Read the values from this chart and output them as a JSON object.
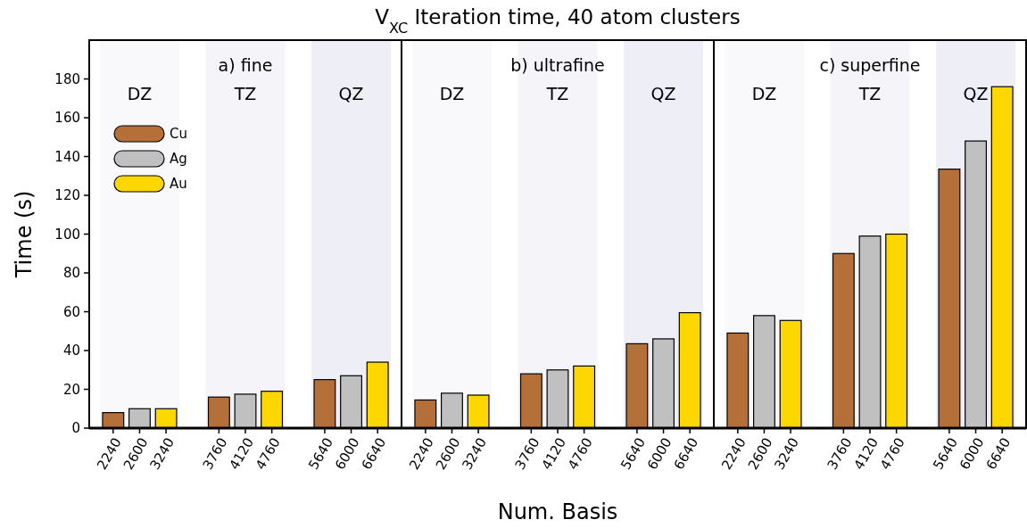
{
  "chart_data": [
    {
      "type": "bar",
      "subtitle": "a) fine",
      "ylabel": "Time (s)",
      "categories": [
        "2240",
        "2600",
        "3240",
        null,
        "3760",
        "4120",
        "4760",
        null,
        "5640",
        "6000",
        "6640"
      ],
      "ylim": [
        0,
        200
      ],
      "yticks": [
        0,
        20,
        40,
        60,
        80,
        100,
        120,
        140,
        160,
        180
      ],
      "legend": "top left",
      "bands": [
        {
          "axis": "x",
          "from": "2240",
          "to": "3240",
          "label": "DZ",
          "color": "#f9f9fc"
        },
        {
          "axis": "x",
          "from": "3760",
          "to": "4760",
          "label": "TZ",
          "color": "#f4f4f9"
        },
        {
          "axis": "x",
          "from": "5640",
          "to": "6640",
          "label": "QZ",
          "color": "#eeeef6"
        }
      ],
      "series": [
        {
          "name": "Cu",
          "color": "#b5703a",
          "values": [
            8,
            null,
            null,
            null,
            16,
            null,
            null,
            null,
            25,
            null,
            null
          ]
        },
        {
          "name": "Ag",
          "color": "#c0c0c0",
          "values": [
            null,
            10,
            null,
            null,
            null,
            17.5,
            null,
            null,
            null,
            27,
            null
          ]
        },
        {
          "name": "Au",
          "color": "#ffd700",
          "values": [
            null,
            null,
            10,
            null,
            null,
            null,
            19,
            null,
            null,
            null,
            34
          ]
        }
      ]
    },
    {
      "type": "bar",
      "title": "V$_{XC}$ Iteration time, 40 atom clusters",
      "subtitle": "b) ultrafine",
      "xlabel": "Num. Basis",
      "categories": [
        "2240",
        "2600",
        "3240",
        null,
        "3760",
        "4120",
        "4760",
        null,
        "5640",
        "6000",
        "6640"
      ],
      "series": [
        {
          "color": "#b5703a",
          "values": [
            14.5,
            null,
            null,
            null,
            28,
            null,
            null,
            null,
            43.5,
            null,
            null
          ]
        },
        {
          "color": "#c0c0c0",
          "values": [
            null,
            18,
            null,
            null,
            null,
            30,
            null,
            null,
            null,
            46,
            null
          ]
        },
        {
          "color": "#ffd700",
          "values": [
            null,
            null,
            17,
            null,
            null,
            null,
            32,
            null,
            null,
            null,
            59.5
          ]
        }
      ],
      "ylim": [
        0,
        200
      ],
      "tick_labels": "x",
      "bands": [
        {
          "axis": "x",
          "from": "2240",
          "to": "3240",
          "label": "DZ",
          "color": "#f9f9fc"
        },
        {
          "axis": "x",
          "from": "3760",
          "to": "4760",
          "label": "TZ",
          "color": "#f4f4f9"
        },
        {
          "axis": "x",
          "from": "5640",
          "to": "6640",
          "label": "QZ",
          "color": "#eeeef6"
        }
      ]
    },
    {
      "type": "bar",
      "subtitle": "c) superfine",
      "categories": [
        "2240",
        "2600",
        "3240",
        null,
        "3760",
        "4120",
        "4760",
        null,
        "5640",
        "6000",
        "6640"
      ],
      "series": [
        {
          "color": "#b5703a",
          "values": [
            49,
            null,
            null,
            null,
            90,
            null,
            null,
            null,
            133.5,
            null,
            null
          ]
        },
        {
          "color": "#c0c0c0",
          "values": [
            null,
            58,
            null,
            null,
            null,
            99,
            null,
            null,
            null,
            148,
            null
          ]
        },
        {
          "color": "#ffd700",
          "values": [
            null,
            null,
            55.5,
            null,
            null,
            null,
            100,
            null,
            null,
            null,
            176
          ]
        }
      ],
      "ylim": [
        0,
        200
      ],
      "tick_labels": "x",
      "bands": [
        {
          "axis": "x",
          "from": "2240",
          "to": "3240",
          "label": "DZ",
          "color": "#f9f9fc"
        },
        {
          "axis": "x",
          "from": "3760",
          "to": "4760",
          "label": "TZ",
          "color": "#f4f4f9"
        },
        {
          "axis": "x",
          "from": "5640",
          "to": "6640",
          "label": "QZ",
          "color": "#eeeef6"
        }
      ]
    }
  ]
}
